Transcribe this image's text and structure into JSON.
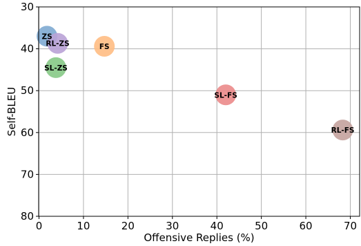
{
  "chart_data": {
    "type": "scatter",
    "xlabel": "Offensive Replies (%)",
    "ylabel": "Self-BLEU",
    "xlim": [
      0,
      72
    ],
    "ylim": [
      80,
      30
    ],
    "y_inverted": true,
    "grid": true,
    "x_ticks": [
      "0",
      "10",
      "20",
      "30",
      "40",
      "50",
      "60",
      "70"
    ],
    "y_ticks": [
      "30",
      "40",
      "50",
      "60",
      "70",
      "80"
    ],
    "points": [
      {
        "label": "ZS",
        "x": 1.8,
        "y": 37.0,
        "color": "#7eaad1"
      },
      {
        "label": "RL-ZS",
        "x": 4.2,
        "y": 38.7,
        "color": "#b9a2d6"
      },
      {
        "label": "FS",
        "x": 14.7,
        "y": 39.4,
        "color": "#ffbd83"
      },
      {
        "label": "SL-ZS",
        "x": 3.8,
        "y": 44.5,
        "color": "#86c986"
      },
      {
        "label": "SL-FS",
        "x": 42.0,
        "y": 51.0,
        "color": "#eb8a8a"
      },
      {
        "label": "RL-FS",
        "x": 68.3,
        "y": 59.4,
        "color": "#c4a29d"
      }
    ]
  }
}
